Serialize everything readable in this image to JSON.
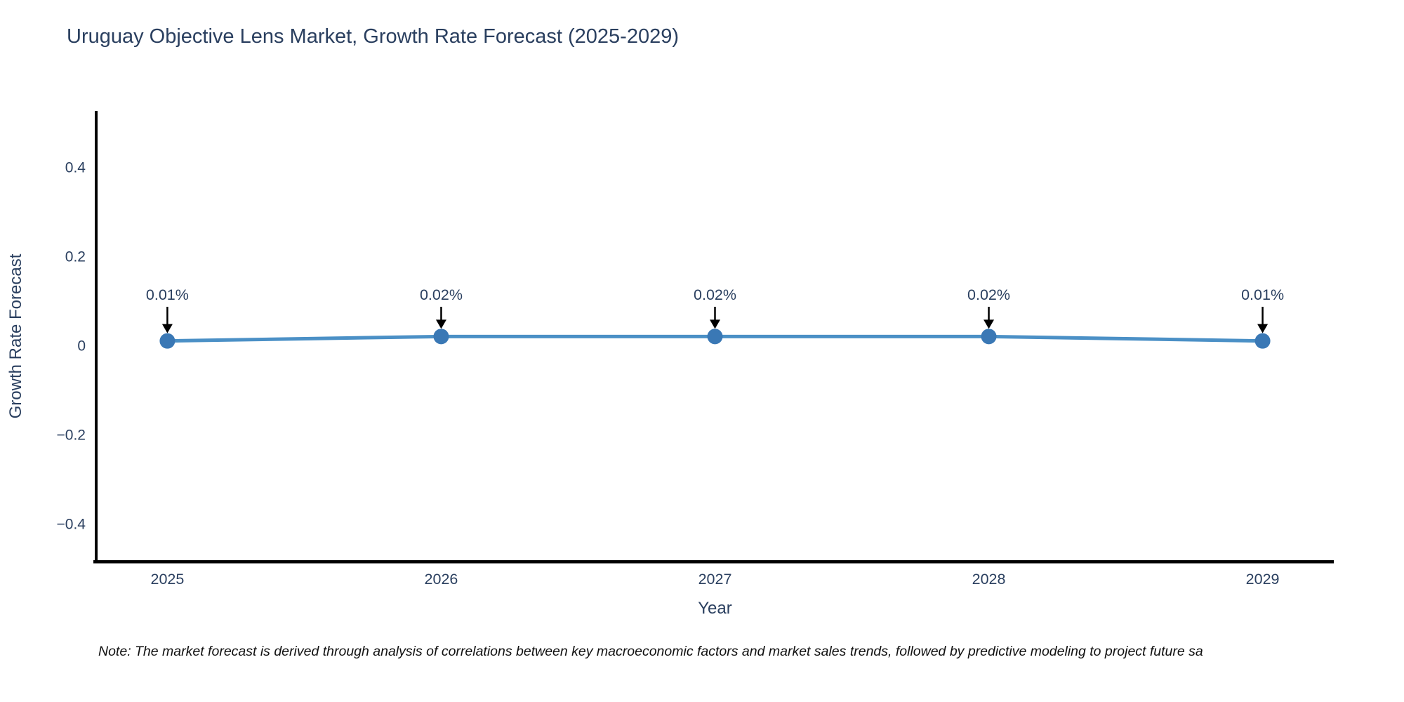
{
  "title": "Uruguay Objective Lens Market, Growth Rate Forecast (2025-2029)",
  "note": "Note: The market forecast is derived through analysis of correlations between key macroeconomic factors and market sales trends, followed by predictive modeling to project future sa",
  "chart_data": {
    "type": "line",
    "title": "Uruguay Objective Lens Market, Growth Rate Forecast (2025-2029)",
    "xlabel": "Year",
    "ylabel": "Growth Rate Forecast",
    "x": [
      2025,
      2026,
      2027,
      2028,
      2029
    ],
    "values": [
      0.01,
      0.02,
      0.02,
      0.02,
      0.01
    ],
    "point_labels": [
      "0.01%",
      "0.02%",
      "0.02%",
      "0.02%",
      "0.01%"
    ],
    "series_name": "Growth Rate Forecast",
    "ytick_values": [
      0.4,
      0.2,
      0,
      -0.2,
      -0.4
    ],
    "ytick_labels": [
      "0.4",
      "0.2",
      "0",
      "−0.2",
      "−0.4"
    ],
    "xtick_labels": [
      "2025",
      "2026",
      "2027",
      "2028",
      "2029"
    ],
    "xlim": [
      2024.74,
      2029.26
    ],
    "ylim": [
      -0.485,
      0.526
    ],
    "grid": false,
    "legend": "none",
    "annotations_have_arrows": true,
    "colors": {
      "line": "#4b90c6",
      "marker": "#3a78b5",
      "axis": "#000000",
      "tick_text": "#2a3f5f",
      "title_text": "#2a3f5f",
      "annotation_text": "#2a3f5f",
      "annotation_arrow": "#000000"
    }
  }
}
